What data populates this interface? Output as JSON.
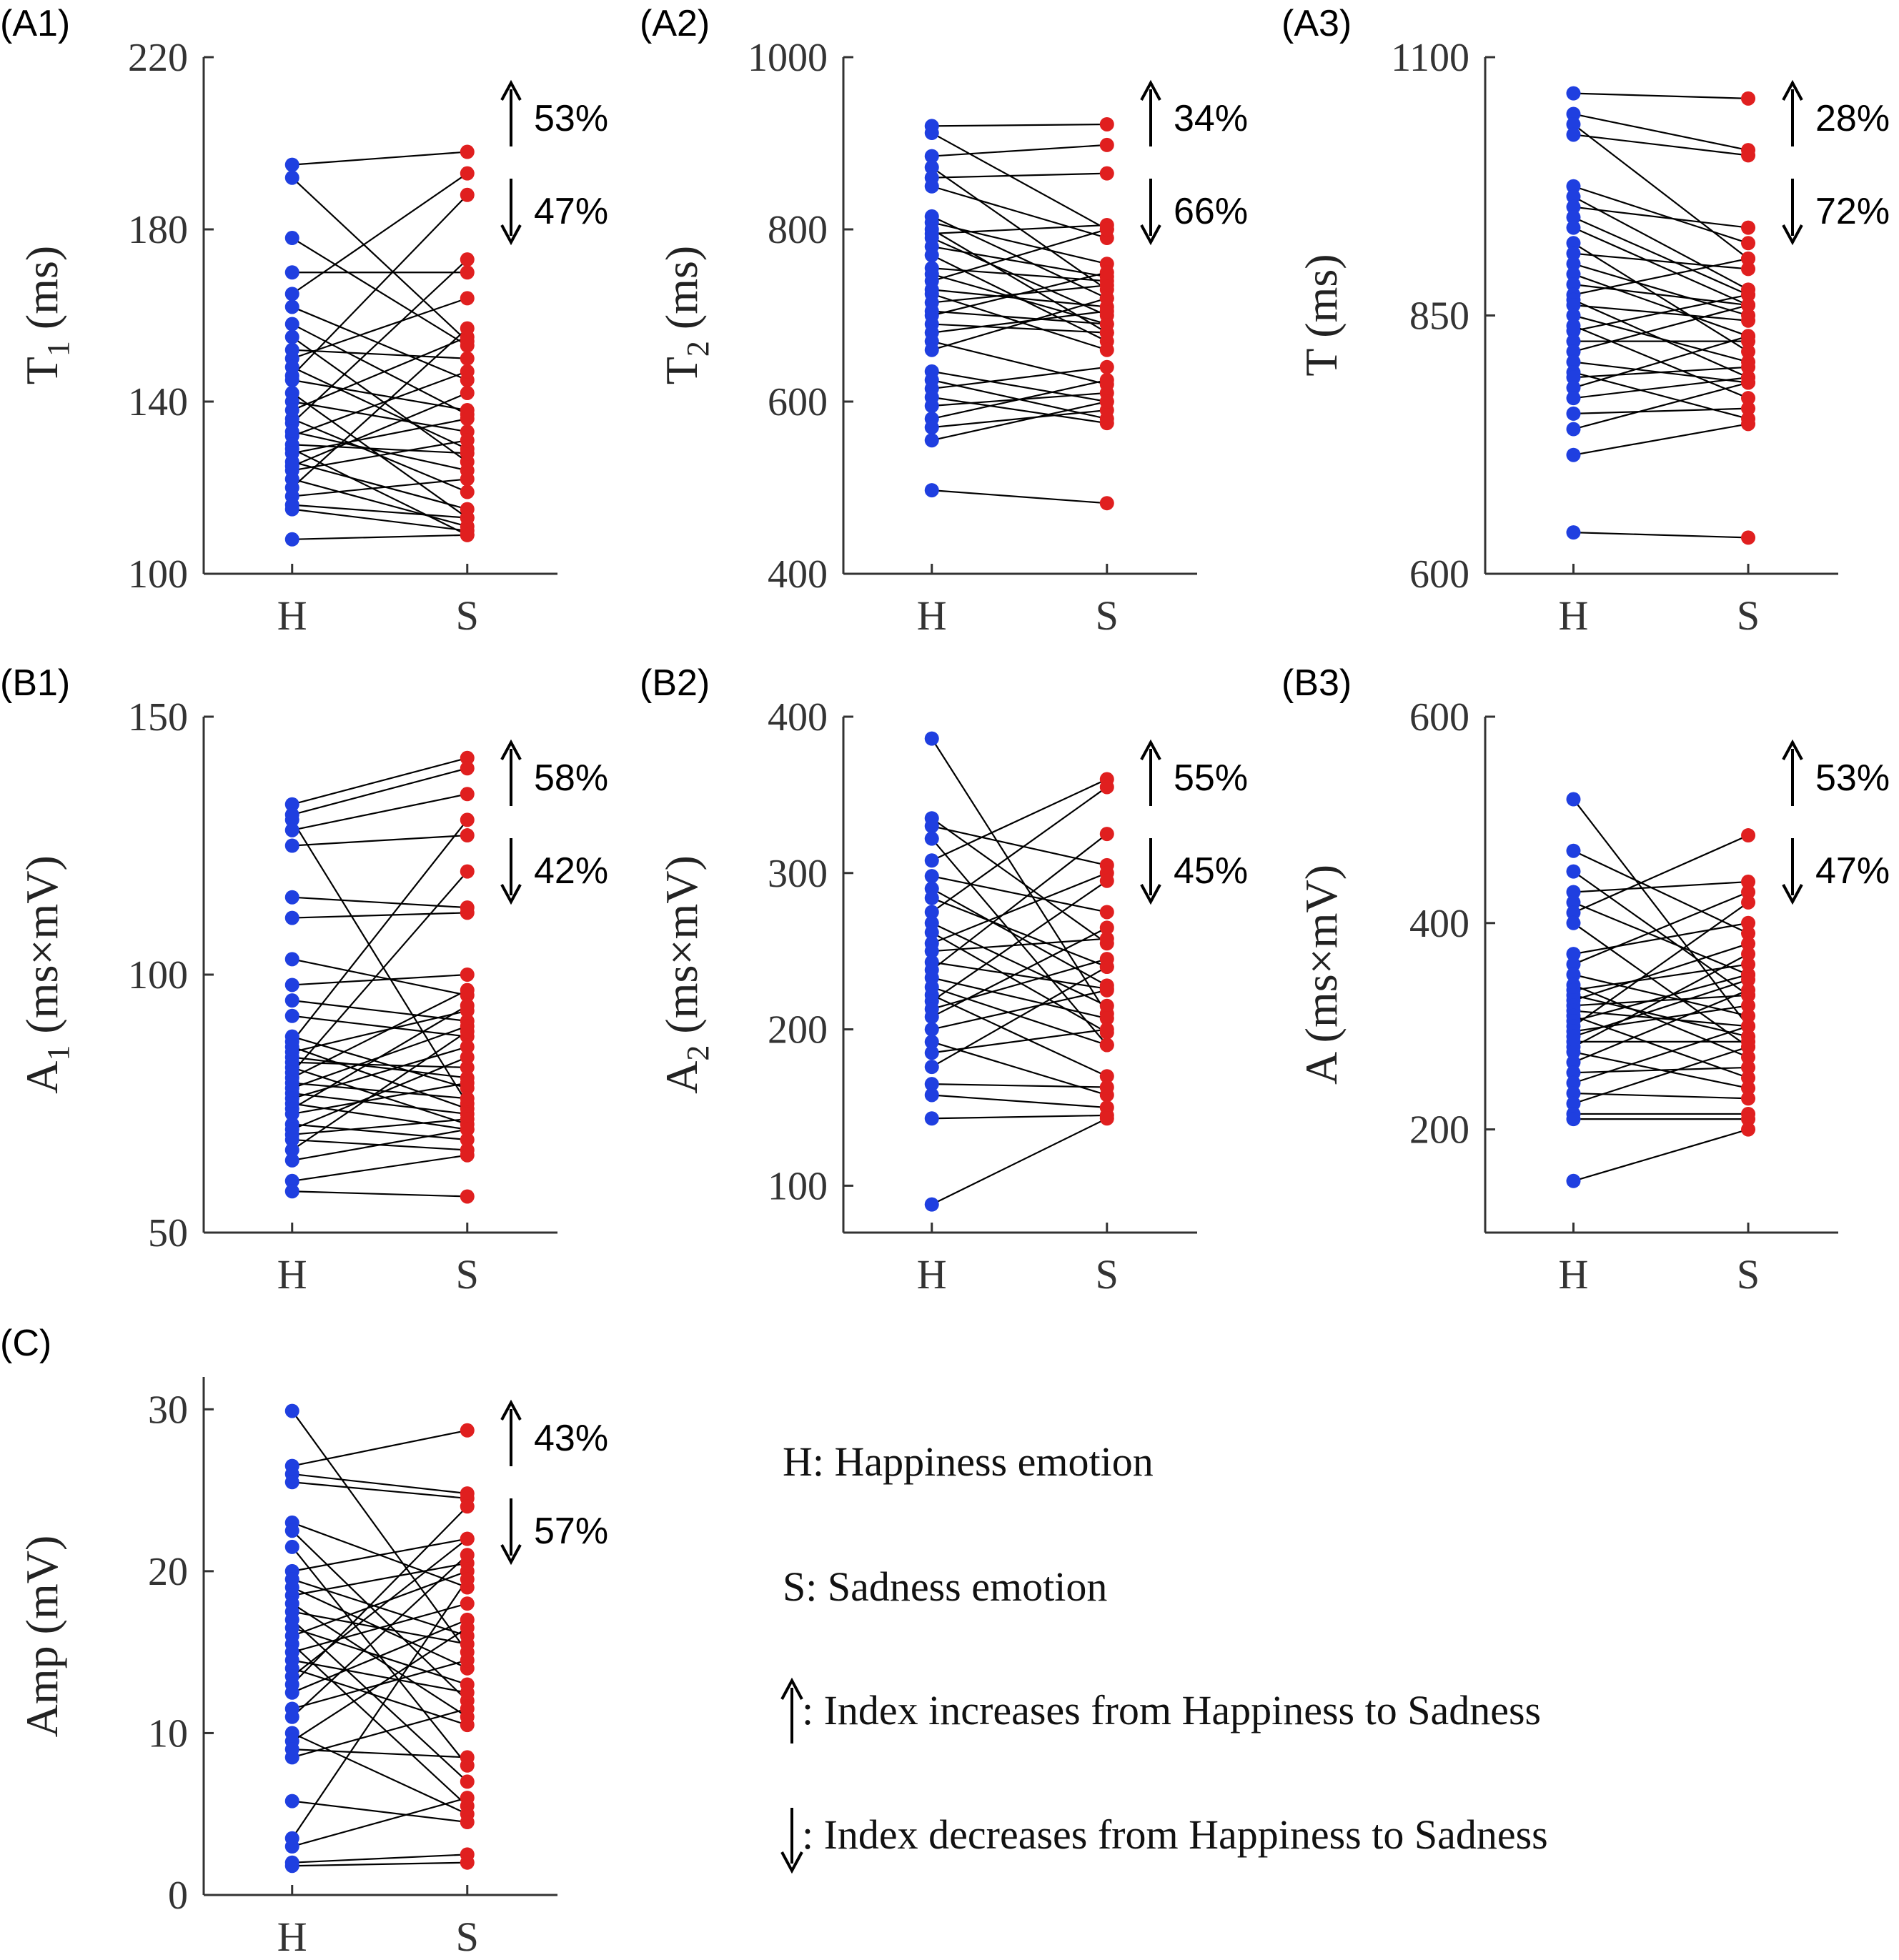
{
  "colors": {
    "happiness": "#1f3fe0",
    "sadness": "#e01f1f",
    "line": "#000000",
    "axis": "#333333"
  },
  "legend": {
    "h_text": "H: Happiness emotion",
    "s_text": "S: Sadness emotion",
    "up_text": ": Index increases from Happiness to Sadness",
    "down_text": ": Index decreases from Happiness to Sadness"
  },
  "chart_data": [
    {
      "type": "scatter",
      "panel": "(A1)",
      "ylabel": "T",
      "ylabel_sub": "1",
      "ylabel_unit": " (ms)",
      "ylim": [
        100,
        220
      ],
      "yticks": [
        "100",
        "140",
        "180",
        "220"
      ],
      "categories": [
        "H",
        "S"
      ],
      "up_pct": "53%",
      "down_pct": "47%",
      "pairs": [
        [
          195,
          198
        ],
        [
          192,
          154
        ],
        [
          178,
          153
        ],
        [
          170,
          170
        ],
        [
          165,
          193
        ],
        [
          162,
          145
        ],
        [
          158,
          137
        ],
        [
          155,
          126
        ],
        [
          152,
          150
        ],
        [
          150,
          164
        ],
        [
          148,
          129
        ],
        [
          146,
          188
        ],
        [
          145,
          138
        ],
        [
          142,
          113
        ],
        [
          140,
          133
        ],
        [
          138,
          155
        ],
        [
          136,
          119
        ],
        [
          135,
          173
        ],
        [
          133,
          124
        ],
        [
          132,
          147
        ],
        [
          130,
          128
        ],
        [
          129,
          109
        ],
        [
          128,
          136
        ],
        [
          126,
          115
        ],
        [
          125,
          142
        ],
        [
          124,
          131
        ],
        [
          122,
          111
        ],
        [
          120,
          157
        ],
        [
          118,
          122
        ],
        [
          116,
          113
        ],
        [
          115,
          110
        ],
        [
          108,
          109
        ]
      ]
    },
    {
      "type": "scatter",
      "panel": "(A2)",
      "ylabel": "T",
      "ylabel_sub": "2",
      "ylabel_unit": " (ms)",
      "ylim": [
        400,
        1000
      ],
      "yticks": [
        "400",
        "600",
        "800",
        "1000"
      ],
      "categories": [
        "H",
        "S"
      ],
      "up_pct": "34%",
      "down_pct": "66%",
      "pairs": [
        [
          920,
          922
        ],
        [
          912,
          800
        ],
        [
          885,
          898
        ],
        [
          872,
          730
        ],
        [
          860,
          865
        ],
        [
          850,
          790
        ],
        [
          815,
          720
        ],
        [
          808,
          760
        ],
        [
          800,
          680
        ],
        [
          795,
          805
        ],
        [
          790,
          700
        ],
        [
          780,
          745
        ],
        [
          770,
          670
        ],
        [
          755,
          740
        ],
        [
          748,
          690
        ],
        [
          740,
          800
        ],
        [
          730,
          710
        ],
        [
          725,
          660
        ],
        [
          715,
          735
        ],
        [
          705,
          690
        ],
        [
          700,
          750
        ],
        [
          690,
          680
        ],
        [
          680,
          705
        ],
        [
          670,
          620
        ],
        [
          660,
          720
        ],
        [
          635,
          600
        ],
        [
          625,
          580
        ],
        [
          615,
          640
        ],
        [
          605,
          575
        ],
        [
          595,
          610
        ],
        [
          580,
          625
        ],
        [
          570,
          590
        ],
        [
          555,
          600
        ],
        [
          497,
          482
        ]
      ]
    },
    {
      "type": "scatter",
      "panel": "(A3)",
      "ylabel": "T",
      "ylabel_sub": "",
      "ylabel_unit": "  (ms)",
      "ylim": [
        600,
        1100
      ],
      "yticks": [
        "600",
        "850",
        "1100"
      ],
      "categories": [
        "H",
        "S"
      ],
      "up_pct": "28%",
      "down_pct": "72%",
      "pairs": [
        [
          1065,
          1060
        ],
        [
          1045,
          1010
        ],
        [
          1035,
          905
        ],
        [
          1025,
          1005
        ],
        [
          975,
          920
        ],
        [
          965,
          875
        ],
        [
          955,
          935
        ],
        [
          945,
          870
        ],
        [
          935,
          860
        ],
        [
          920,
          815
        ],
        [
          910,
          895
        ],
        [
          900,
          850
        ],
        [
          890,
          830
        ],
        [
          880,
          860
        ],
        [
          870,
          905
        ],
        [
          865,
          790
        ],
        [
          860,
          845
        ],
        [
          850,
          805
        ],
        [
          840,
          770
        ],
        [
          835,
          870
        ],
        [
          825,
          825
        ],
        [
          815,
          860
        ],
        [
          805,
          785
        ],
        [
          795,
          750
        ],
        [
          790,
          800
        ],
        [
          780,
          830
        ],
        [
          770,
          790
        ],
        [
          755,
          760
        ],
        [
          740,
          785
        ],
        [
          715,
          745
        ],
        [
          640,
          635
        ]
      ]
    },
    {
      "type": "scatter",
      "panel": "(B1)",
      "ylabel": "A",
      "ylabel_sub": "1",
      "ylabel_unit": " (ms×mV)",
      "ylim": [
        50,
        150
      ],
      "yticks": [
        "50",
        "100",
        "150"
      ],
      "categories": [
        "H",
        "S"
      ],
      "up_pct": "58%",
      "down_pct": "42%",
      "pairs": [
        [
          133,
          142
        ],
        [
          131,
          140
        ],
        [
          130,
          75
        ],
        [
          128,
          135
        ],
        [
          125,
          127
        ],
        [
          115,
          113
        ],
        [
          111,
          112
        ],
        [
          103,
          96
        ],
        [
          98,
          100
        ],
        [
          95,
          91
        ],
        [
          92,
          88
        ],
        [
          88,
          78
        ],
        [
          87,
          130
        ],
        [
          86,
          74
        ],
        [
          85,
          93
        ],
        [
          84,
          80
        ],
        [
          83,
          82
        ],
        [
          82,
          71
        ],
        [
          81,
          120
        ],
        [
          80,
          97
        ],
        [
          79,
          76
        ],
        [
          78,
          90
        ],
        [
          77,
          73
        ],
        [
          76,
          86
        ],
        [
          75,
          70
        ],
        [
          74,
          94
        ],
        [
          73,
          79
        ],
        [
          71,
          68
        ],
        [
          70,
          84
        ],
        [
          69,
          72
        ],
        [
          68,
          66
        ],
        [
          66,
          89
        ],
        [
          64,
          70
        ],
        [
          60,
          65
        ],
        [
          58,
          57
        ]
      ]
    },
    {
      "type": "scatter",
      "panel": "(B2)",
      "ylabel": "A",
      "ylabel_sub": "2",
      "ylabel_unit": " (ms×mV)",
      "ylim": [
        70,
        400
      ],
      "yticks": [
        "100",
        "200",
        "300",
        "400"
      ],
      "categories": [
        "H",
        "S"
      ],
      "up_pct": "55%",
      "down_pct": "45%",
      "pairs": [
        [
          386,
          210
        ],
        [
          335,
          255
        ],
        [
          330,
          305
        ],
        [
          322,
          190
        ],
        [
          308,
          360
        ],
        [
          298,
          275
        ],
        [
          290,
          228
        ],
        [
          284,
          240
        ],
        [
          275,
          355
        ],
        [
          268,
          215
        ],
        [
          262,
          198
        ],
        [
          255,
          300
        ],
        [
          250,
          258
        ],
        [
          243,
          226
        ],
        [
          238,
          325
        ],
        [
          233,
          207
        ],
        [
          227,
          190
        ],
        [
          222,
          170
        ],
        [
          218,
          295
        ],
        [
          213,
          245
        ],
        [
          208,
          265
        ],
        [
          200,
          225
        ],
        [
          192,
          158
        ],
        [
          185,
          200
        ],
        [
          176,
          240
        ],
        [
          165,
          163
        ],
        [
          158,
          150
        ],
        [
          143,
          145
        ],
        [
          88,
          143
        ]
      ]
    },
    {
      "type": "scatter",
      "panel": "(B3)",
      "ylabel": "A",
      "ylabel_sub": "",
      "ylabel_unit": " (ms×mV)",
      "ylim": [
        100,
        600
      ],
      "yticks": [
        "200",
        "400",
        "600"
      ],
      "categories": [
        "H",
        "S"
      ],
      "up_pct": "53%",
      "down_pct": "47%",
      "pairs": [
        [
          520,
          300
        ],
        [
          470,
          390
        ],
        [
          450,
          330
        ],
        [
          430,
          440
        ],
        [
          420,
          350
        ],
        [
          410,
          485
        ],
        [
          400,
          280
        ],
        [
          370,
          400
        ],
        [
          360,
          430
        ],
        [
          350,
          310
        ],
        [
          340,
          270
        ],
        [
          335,
          360
        ],
        [
          330,
          290
        ],
        [
          325,
          380
        ],
        [
          320,
          330
        ],
        [
          315,
          300
        ],
        [
          310,
          250
        ],
        [
          305,
          350
        ],
        [
          300,
          420
        ],
        [
          295,
          320
        ],
        [
          290,
          345
        ],
        [
          285,
          285
        ],
        [
          280,
          370
        ],
        [
          275,
          240
        ],
        [
          265,
          335
        ],
        [
          255,
          260
        ],
        [
          245,
          300
        ],
        [
          235,
          230
        ],
        [
          225,
          280
        ],
        [
          215,
          215
        ],
        [
          210,
          210
        ],
        [
          150,
          200
        ]
      ]
    },
    {
      "type": "scatter",
      "panel": "(C)",
      "ylabel": "Amp (mV)",
      "ylabel_sub": "",
      "ylabel_unit": "",
      "ylim": [
        0,
        32
      ],
      "yticks": [
        "0",
        "10",
        "20",
        "30"
      ],
      "categories": [
        "H",
        "S"
      ],
      "up_pct": "43%",
      "down_pct": "57%",
      "pairs": [
        [
          29.9,
          15.0
        ],
        [
          26.5,
          28.7
        ],
        [
          26.0,
          24.8
        ],
        [
          25.5,
          24.5
        ],
        [
          23.0,
          19.0
        ],
        [
          22.5,
          12.0
        ],
        [
          21.5,
          8.0
        ],
        [
          20.0,
          22.0
        ],
        [
          19.5,
          16.0
        ],
        [
          19.0,
          14.0
        ],
        [
          18.5,
          20.5
        ],
        [
          18.0,
          11.0
        ],
        [
          17.5,
          15.5
        ],
        [
          17.0,
          7.0
        ],
        [
          16.5,
          13.0
        ],
        [
          16.0,
          20.0
        ],
        [
          15.5,
          5.5
        ],
        [
          15.0,
          18.0
        ],
        [
          14.5,
          12.5
        ],
        [
          14.0,
          10.5
        ],
        [
          13.5,
          22.0
        ],
        [
          13.0,
          24.0
        ],
        [
          12.5,
          17.0
        ],
        [
          11.5,
          14.5
        ],
        [
          11.0,
          21.0
        ],
        [
          10.0,
          5.0
        ],
        [
          9.5,
          16.5
        ],
        [
          9.0,
          8.5
        ],
        [
          8.5,
          11.5
        ],
        [
          5.8,
          4.5
        ],
        [
          3.5,
          19.5
        ],
        [
          3.0,
          6.0
        ],
        [
          2.0,
          2.5
        ],
        [
          1.8,
          2.0
        ]
      ]
    }
  ]
}
